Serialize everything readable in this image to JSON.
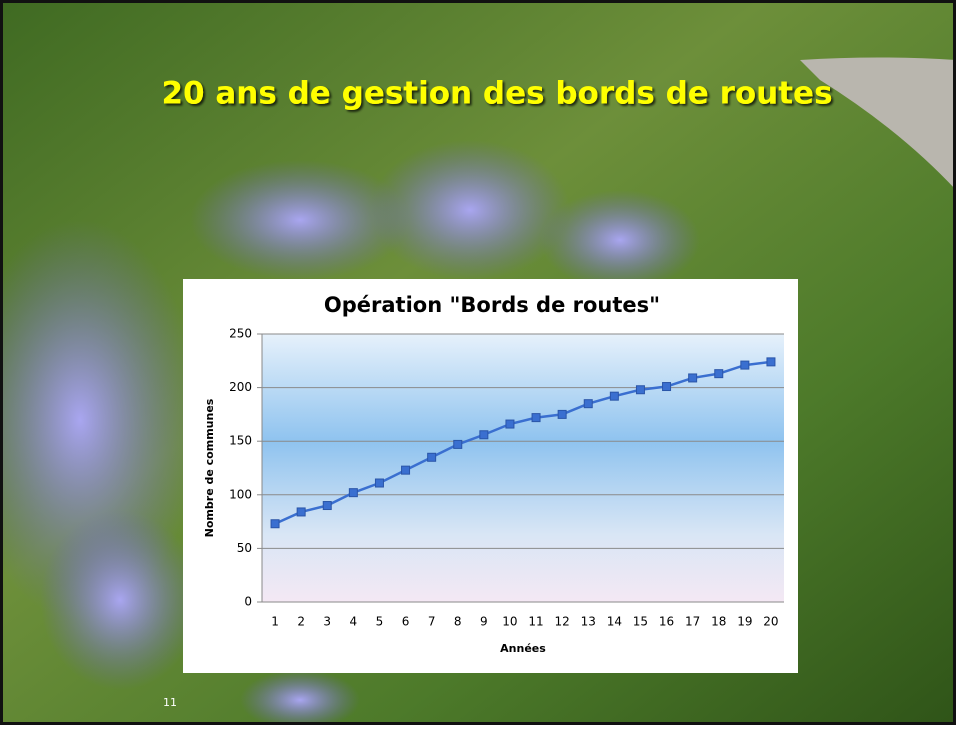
{
  "slide_title": "20 ans de gestion des bords de routes",
  "slide_number": "11",
  "chart_data": {
    "type": "line",
    "title": "Opération \"Bords de routes\"",
    "x_label": "Années",
    "y_label": "Nombre de communes",
    "categories": [
      "1",
      "2",
      "3",
      "4",
      "5",
      "6",
      "7",
      "8",
      "9",
      "10",
      "11",
      "12",
      "13",
      "14",
      "15",
      "16",
      "17",
      "18",
      "19",
      "20"
    ],
    "values": [
      73,
      84,
      90,
      102,
      111,
      123,
      135,
      147,
      156,
      166,
      172,
      175,
      185,
      192,
      198,
      201,
      209,
      213,
      221,
      224
    ],
    "color": "#3a6fd0",
    "ylim": [
      0,
      250
    ],
    "yticks": [
      0,
      50,
      100,
      150,
      200,
      250
    ],
    "grid": true
  }
}
